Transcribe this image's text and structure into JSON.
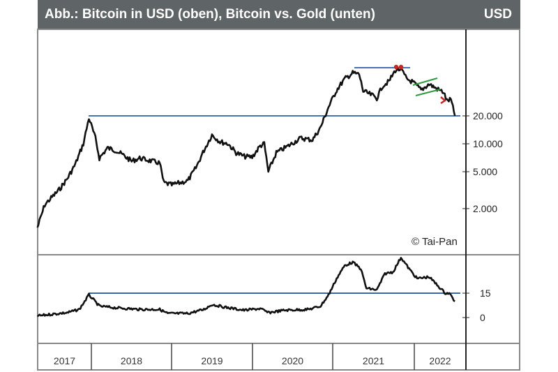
{
  "header": {
    "title": "Abb.: Bitcoin in USD (oben), Bitcoin vs. Gold (unten)",
    "unit": "USD"
  },
  "copyright": "© Tai-Pan",
  "chart_data": [
    {
      "type": "line",
      "title": "Bitcoin in USD",
      "scale": "log",
      "ylabel": "USD",
      "yticks": [
        {
          "v": 20000,
          "label": "20.000"
        },
        {
          "v": 10000,
          "label": "10.000"
        },
        {
          "v": 5000,
          "label": "5.000"
        },
        {
          "v": 2000,
          "label": "2.000"
        }
      ],
      "series": [
        {
          "name": "Bitcoin",
          "points": [
            [
              2017.33,
              1250
            ],
            [
              2017.42,
              2200
            ],
            [
              2017.5,
              2600
            ],
            [
              2017.6,
              3200
            ],
            [
              2017.7,
              4200
            ],
            [
              2017.8,
              6000
            ],
            [
              2017.9,
              10000
            ],
            [
              2017.97,
              19000
            ],
            [
              2018.05,
              11500
            ],
            [
              2018.1,
              7000
            ],
            [
              2018.2,
              9000
            ],
            [
              2018.3,
              8500
            ],
            [
              2018.4,
              7500
            ],
            [
              2018.5,
              6500
            ],
            [
              2018.6,
              7000
            ],
            [
              2018.75,
              6500
            ],
            [
              2018.85,
              6200
            ],
            [
              2018.9,
              3800
            ],
            [
              2019.0,
              3600
            ],
            [
              2019.2,
              4000
            ],
            [
              2019.3,
              5500
            ],
            [
              2019.4,
              8500
            ],
            [
              2019.5,
              12500
            ],
            [
              2019.6,
              10500
            ],
            [
              2019.7,
              10000
            ],
            [
              2019.8,
              8000
            ],
            [
              2019.9,
              7300
            ],
            [
              2020.0,
              7200
            ],
            [
              2020.1,
              9500
            ],
            [
              2020.15,
              10000
            ],
            [
              2020.2,
              5000
            ],
            [
              2020.3,
              8000
            ],
            [
              2020.45,
              9500
            ],
            [
              2020.6,
              11500
            ],
            [
              2020.75,
              11000
            ],
            [
              2020.85,
              15000
            ],
            [
              2020.95,
              25000
            ],
            [
              2021.05,
              38000
            ],
            [
              2021.15,
              50000
            ],
            [
              2021.25,
              58000
            ],
            [
              2021.33,
              56000
            ],
            [
              2021.38,
              37000
            ],
            [
              2021.5,
              33000
            ],
            [
              2021.55,
              31000
            ],
            [
              2021.62,
              42000
            ],
            [
              2021.7,
              47000
            ],
            [
              2021.78,
              62000
            ],
            [
              2021.85,
              64000
            ],
            [
              2021.92,
              50000
            ],
            [
              2022.0,
              46000
            ],
            [
              2022.1,
              38000
            ],
            [
              2022.2,
              44000
            ],
            [
              2022.3,
              39000
            ],
            [
              2022.38,
              36000
            ],
            [
              2022.42,
              29000
            ],
            [
              2022.47,
              30000
            ],
            [
              2022.52,
              20000
            ]
          ]
        }
      ],
      "annotations": [
        "resistance 20.000",
        "double top",
        "bear flag"
      ]
    },
    {
      "type": "line",
      "title": "Bitcoin vs. Gold",
      "yticks": [
        {
          "v": 15,
          "label": "15"
        },
        {
          "v": 0,
          "label": "0"
        }
      ],
      "series": [
        {
          "name": "Bitcoin/Gold",
          "points": [
            [
              2017.33,
              1
            ],
            [
              2017.5,
              2
            ],
            [
              2017.7,
              3
            ],
            [
              2017.85,
              5
            ],
            [
              2017.97,
              14
            ],
            [
              2018.1,
              7
            ],
            [
              2018.3,
              6
            ],
            [
              2018.6,
              5
            ],
            [
              2018.85,
              5
            ],
            [
              2018.95,
              2.5
            ],
            [
              2019.2,
              2.5
            ],
            [
              2019.4,
              5
            ],
            [
              2019.5,
              8
            ],
            [
              2019.7,
              6
            ],
            [
              2019.9,
              4.5
            ],
            [
              2020.1,
              5.5
            ],
            [
              2020.2,
              3
            ],
            [
              2020.4,
              4.5
            ],
            [
              2020.7,
              5
            ],
            [
              2020.85,
              7
            ],
            [
              2020.95,
              14
            ],
            [
              2021.05,
              24
            ],
            [
              2021.15,
              32
            ],
            [
              2021.25,
              34
            ],
            [
              2021.35,
              30
            ],
            [
              2021.42,
              18
            ],
            [
              2021.55,
              17
            ],
            [
              2021.65,
              27
            ],
            [
              2021.75,
              28
            ],
            [
              2021.85,
              37
            ],
            [
              2021.95,
              30
            ],
            [
              2022.05,
              24
            ],
            [
              2022.2,
              25
            ],
            [
              2022.3,
              20
            ],
            [
              2022.4,
              15
            ],
            [
              2022.45,
              15
            ],
            [
              2022.52,
              10
            ]
          ]
        }
      ],
      "reference_line": 15
    },
    {
      "xticks": [
        "2017",
        "2018",
        "2019",
        "2020",
        "2021",
        "2022"
      ]
    }
  ]
}
